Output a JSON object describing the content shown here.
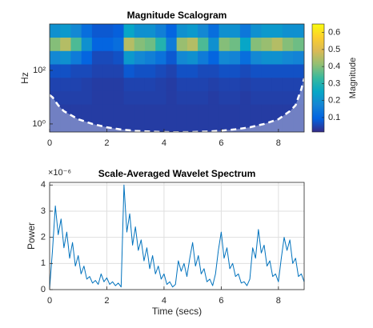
{
  "chart_data": [
    {
      "type": "heatmap",
      "title": "Magnitude Scalogram",
      "y_label": "Hz",
      "log_y": true,
      "grid": false,
      "xlim": [
        0,
        8.9
      ],
      "xticks": [
        0,
        2,
        4,
        6,
        8
      ],
      "ylim": [
        0.5,
        5400
      ],
      "yticks": [
        {
          "value": 1,
          "label": "10⁰"
        },
        {
          "value": 100,
          "label": "10²"
        }
      ],
      "colormap": "parula",
      "colorbar": {
        "label": "Magnitude",
        "lim": [
          0.015,
          0.65
        ],
        "ticks": [
          0.1,
          0.2,
          0.3,
          0.4,
          0.5,
          0.6
        ]
      },
      "x": [
        0.185,
        0.555,
        0.925,
        1.295,
        1.665,
        2.035,
        2.405,
        2.775,
        3.145,
        3.515,
        3.885,
        4.255,
        4.625,
        4.995,
        5.365,
        5.735,
        6.105,
        6.475,
        6.845,
        7.215,
        7.585,
        7.955,
        8.325,
        8.695
      ],
      "y": [
        1,
        3,
        10,
        30,
        100,
        300,
        1000,
        3000
      ],
      "z": [
        [
          0.04,
          0.04,
          0.04,
          0.04,
          0.04,
          0.04,
          0.04,
          0.04,
          0.04,
          0.04,
          0.04,
          0.04,
          0.04,
          0.04,
          0.04,
          0.04,
          0.04,
          0.04,
          0.04,
          0.04,
          0.04,
          0.04,
          0.04,
          0.04
        ],
        [
          0.04,
          0.04,
          0.04,
          0.04,
          0.04,
          0.04,
          0.04,
          0.04,
          0.04,
          0.04,
          0.04,
          0.04,
          0.04,
          0.04,
          0.04,
          0.04,
          0.04,
          0.04,
          0.04,
          0.04,
          0.04,
          0.04,
          0.04,
          0.04
        ],
        [
          0.045,
          0.045,
          0.045,
          0.045,
          0.04,
          0.04,
          0.04,
          0.045,
          0.045,
          0.045,
          0.045,
          0.04,
          0.045,
          0.045,
          0.045,
          0.04,
          0.045,
          0.045,
          0.04,
          0.045,
          0.045,
          0.045,
          0.045,
          0.045
        ],
        [
          0.05,
          0.05,
          0.05,
          0.045,
          0.04,
          0.04,
          0.04,
          0.05,
          0.05,
          0.05,
          0.045,
          0.04,
          0.05,
          0.05,
          0.05,
          0.045,
          0.05,
          0.05,
          0.045,
          0.05,
          0.05,
          0.05,
          0.05,
          0.05
        ],
        [
          0.07,
          0.07,
          0.06,
          0.06,
          0.05,
          0.05,
          0.05,
          0.08,
          0.07,
          0.07,
          0.06,
          0.05,
          0.07,
          0.07,
          0.06,
          0.06,
          0.07,
          0.07,
          0.06,
          0.07,
          0.07,
          0.07,
          0.07,
          0.07
        ],
        [
          0.18,
          0.2,
          0.15,
          0.1,
          0.06,
          0.06,
          0.07,
          0.22,
          0.18,
          0.16,
          0.13,
          0.08,
          0.18,
          0.2,
          0.15,
          0.1,
          0.18,
          0.17,
          0.12,
          0.18,
          0.2,
          0.2,
          0.18,
          0.17
        ],
        [
          0.4,
          0.45,
          0.35,
          0.2,
          0.1,
          0.1,
          0.12,
          0.45,
          0.4,
          0.38,
          0.3,
          0.15,
          0.42,
          0.45,
          0.35,
          0.2,
          0.4,
          0.38,
          0.25,
          0.4,
          0.42,
          0.45,
          0.4,
          0.38
        ],
        [
          0.2,
          0.22,
          0.18,
          0.12,
          0.08,
          0.08,
          0.09,
          0.25,
          0.2,
          0.2,
          0.16,
          0.1,
          0.2,
          0.22,
          0.18,
          0.12,
          0.2,
          0.2,
          0.14,
          0.2,
          0.22,
          0.22,
          0.2,
          0.2
        ]
      ],
      "coi": {
        "x": [
          0,
          0.1,
          0.3,
          0.5,
          1,
          1.5,
          2,
          2.5,
          3,
          3.5,
          4,
          4.45,
          5,
          5.5,
          6,
          6.5,
          7,
          7.5,
          8,
          8.4,
          8.6,
          8.8,
          8.9
        ],
        "y": [
          12,
          10,
          5,
          3,
          1.5,
          1,
          0.75,
          0.62,
          0.55,
          0.52,
          0.5,
          0.49,
          0.5,
          0.52,
          0.56,
          0.63,
          0.75,
          1,
          1.5,
          3,
          5,
          20,
          50
        ]
      }
    },
    {
      "type": "line",
      "title": "Scale-Averaged Wavelet Spectrum",
      "x_label": "Time (secs)",
      "y_label": "Power",
      "y_exponent_label": "×10⁻⁶",
      "grid": true,
      "color": "#0072bd",
      "xlim": [
        0,
        8.9
      ],
      "xticks": [
        0,
        2,
        4,
        6,
        8
      ],
      "ylim": [
        0,
        4.1
      ],
      "yticks": [
        0,
        1,
        2,
        3,
        4
      ],
      "x": [
        0,
        0.1,
        0.2,
        0.3,
        0.4,
        0.5,
        0.6,
        0.7,
        0.8,
        0.9,
        1,
        1.1,
        1.2,
        1.3,
        1.4,
        1.5,
        1.6,
        1.7,
        1.8,
        1.9,
        2,
        2.1,
        2.2,
        2.3,
        2.4,
        2.5,
        2.6,
        2.7,
        2.8,
        2.9,
        3,
        3.1,
        3.2,
        3.3,
        3.4,
        3.5,
        3.6,
        3.7,
        3.8,
        3.9,
        4,
        4.1,
        4.2,
        4.3,
        4.4,
        4.5,
        4.6,
        4.7,
        4.8,
        4.9,
        5,
        5.1,
        5.2,
        5.3,
        5.4,
        5.5,
        5.6,
        5.7,
        5.8,
        5.9,
        6,
        6.1,
        6.2,
        6.3,
        6.4,
        6.5,
        6.6,
        6.7,
        6.8,
        6.9,
        7,
        7.1,
        7.2,
        7.3,
        7.4,
        7.5,
        7.6,
        7.7,
        7.8,
        7.9,
        8,
        8.1,
        8.2,
        8.3,
        8.4,
        8.5,
        8.6,
        8.7,
        8.8,
        8.9
      ],
      "values": [
        0.05,
        1.5,
        3.2,
        2.1,
        2.7,
        1.6,
        2.2,
        1.2,
        1.8,
        0.9,
        1.3,
        0.6,
        0.9,
        0.4,
        0.5,
        0.25,
        0.35,
        0.2,
        0.6,
        0.3,
        0.45,
        0.2,
        0.3,
        0.15,
        0.25,
        0.1,
        4.0,
        2.2,
        2.9,
        1.7,
        2.4,
        1.5,
        1.9,
        1.1,
        1.6,
        0.8,
        1.3,
        0.6,
        0.9,
        0.4,
        0.6,
        0.2,
        0.3,
        0.1,
        0.2,
        1.1,
        0.7,
        1.0,
        0.5,
        1.2,
        1.8,
        0.9,
        1.3,
        0.6,
        0.8,
        0.3,
        0.4,
        0.15,
        0.6,
        1.5,
        2.2,
        1.2,
        1.6,
        0.8,
        1.0,
        0.5,
        0.6,
        0.25,
        0.3,
        0.15,
        0.4,
        1.6,
        1.2,
        2.3,
        1.4,
        1.7,
        0.9,
        1.1,
        0.5,
        0.6,
        0.3,
        1.2,
        2.0,
        1.5,
        1.9,
        1.0,
        1.2,
        0.5,
        0.6,
        0.3
      ]
    }
  ]
}
